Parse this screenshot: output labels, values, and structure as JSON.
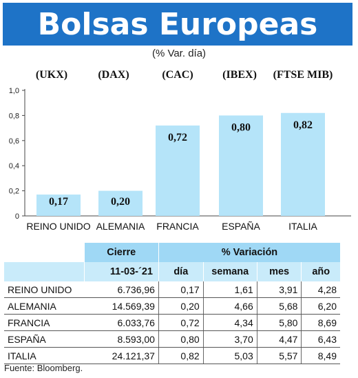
{
  "header": {
    "title": "Bolsas Europeas",
    "subtitle": "(% Var. día)"
  },
  "chart_data": {
    "type": "bar",
    "categories": [
      "REINO UNIDO",
      "ALEMANIA",
      "FRANCIA",
      "ESPAÑA",
      "ITALIA"
    ],
    "codes": [
      "(UKX)",
      "(DAX)",
      "(CAC)",
      "(IBEX)",
      "(FTSE MIB)"
    ],
    "values": [
      0.17,
      0.2,
      0.72,
      0.8,
      0.82
    ],
    "value_labels": [
      "0,17",
      "0,20",
      "0,72",
      "0,80",
      "0,82"
    ],
    "yticks": [
      "0",
      "0,2",
      "0,4",
      "0,6",
      "0,8",
      "1,0"
    ],
    "ylim": [
      0,
      1.0
    ],
    "bar_color": "#b5e4f9",
    "grid": false
  },
  "table": {
    "header_group": {
      "cierre": "Cierre",
      "variacion": "% Variación"
    },
    "header_cols": {
      "date": "11-03-´21",
      "dia": "día",
      "semana": "semana",
      "mes": "mes",
      "anio": "año"
    },
    "rows": [
      {
        "name": "REINO UNIDO",
        "cierre": "6.736,96",
        "dia": "0,17",
        "semana": "1,61",
        "mes": "3,91",
        "anio": "4,28"
      },
      {
        "name": "ALEMANIA",
        "cierre": "14.569,39",
        "dia": "0,20",
        "semana": "4,66",
        "mes": "5,68",
        "anio": "6,20"
      },
      {
        "name": "FRANCIA",
        "cierre": "6.033,76",
        "dia": "0,72",
        "semana": "4,34",
        "mes": "5,80",
        "anio": "8,69"
      },
      {
        "name": "ESPAÑA",
        "cierre": "8.593,00",
        "dia": "0,80",
        "semana": "3,70",
        "mes": "4,47",
        "anio": "6,43"
      },
      {
        "name": "ITALIA",
        "cierre": "24.121,37",
        "dia": "0,82",
        "semana": "5,03",
        "mes": "5,57",
        "anio": "8,49"
      }
    ],
    "header_colors": {
      "top": "#9fd8f5",
      "sub": "#c9ebfa"
    }
  },
  "source": "Fuente: Bloomberg."
}
